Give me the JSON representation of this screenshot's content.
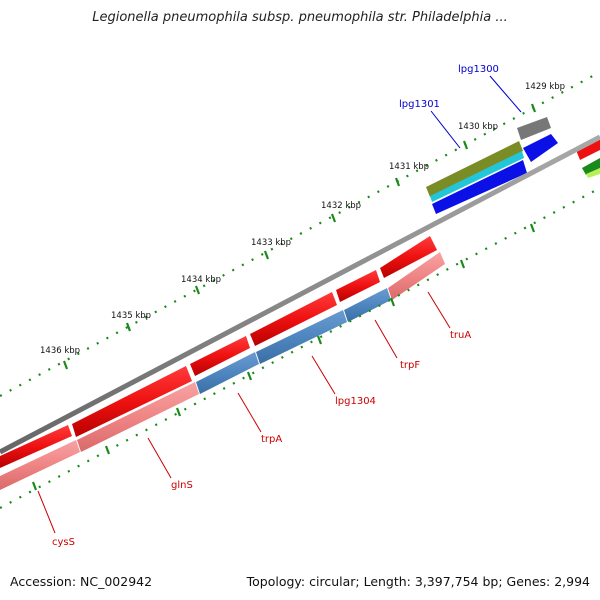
{
  "title": "Legionella pneumophila subsp. pneumophila str. Philadelphia ...",
  "footer": {
    "accession": "Accession: NC_002942",
    "summary": "Topology: circular; Length: 3,397,754 bp; Genes: 2,994"
  },
  "colors": {
    "forward_gene": "#ee1111",
    "reverse_gene": "#f08585",
    "reverse_gene_selected": "#4f86c0",
    "backbone": "#8a8a8a",
    "tick": "#1a8a1a",
    "label_red": "#cc0000",
    "label_blue": "#0000cc"
  },
  "kbp_ticks": [
    {
      "label": "1429 kbp"
    },
    {
      "label": "1430 kbp"
    },
    {
      "label": "1431 kbp"
    },
    {
      "label": "1432 kbp"
    },
    {
      "label": "1433 kbp"
    },
    {
      "label": "1434 kbp"
    },
    {
      "label": "1435 kbp"
    },
    {
      "label": "1436 kbp"
    }
  ],
  "gene_labels": [
    {
      "name": "lpg1300",
      "color": "blue"
    },
    {
      "name": "lpg1301",
      "color": "blue"
    },
    {
      "name": "truA",
      "color": "red"
    },
    {
      "name": "trpF",
      "color": "red"
    },
    {
      "name": "lpg1304",
      "color": "red"
    },
    {
      "name": "trpA",
      "color": "red"
    },
    {
      "name": "glnS",
      "color": "red"
    },
    {
      "name": "cysS",
      "color": "red"
    }
  ]
}
